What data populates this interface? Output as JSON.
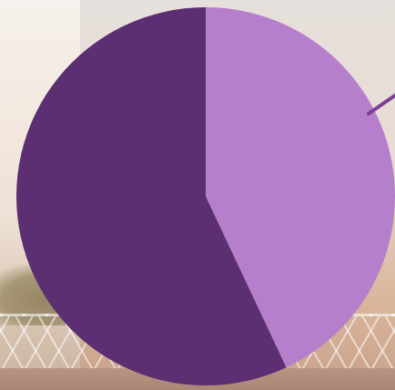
{
  "chart_data": {
    "type": "pie",
    "slices": [
      {
        "value": 43,
        "color": "#b57fcb"
      },
      {
        "value": 57,
        "color": "#5c2f72"
      }
    ],
    "start_angle_deg": 0,
    "leader_line": {
      "color": "#7a3f93"
    },
    "title": "",
    "legend": "none"
  }
}
